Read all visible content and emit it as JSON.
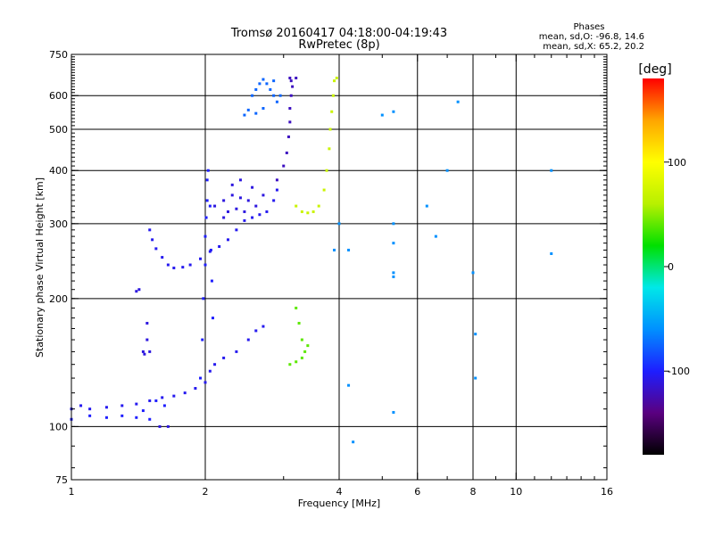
{
  "chart_data": {
    "type": "scatter",
    "title": "Tromsø 20160417 04:18:00-04:19:43",
    "subtitle": "RwPretec (8p)",
    "stats": {
      "heading": "Phases",
      "line_o": "mean, sd,O: -96.8, 14.6",
      "line_x": "mean, sd,X:  65.2, 20.2"
    },
    "xlabel": "Frequency [MHz]",
    "ylabel": "Stationary phase Virtual Height [km]",
    "x_scale": "log",
    "y_scale": "log",
    "xlim": [
      1,
      16
    ],
    "ylim": [
      75,
      750
    ],
    "x_ticks": [
      1,
      2,
      4,
      6,
      8,
      10,
      16
    ],
    "y_ticks": [
      75,
      100,
      200,
      300,
      400,
      500,
      600,
      750
    ],
    "grid": true,
    "colorbar": {
      "label": "[deg]",
      "range": [
        -180,
        180
      ],
      "ticks": [
        100,
        0,
        -100
      ],
      "colors": [
        "#000000",
        "#5a0080",
        "#1e1eff",
        "#0090ff",
        "#00e8e8",
        "#00e000",
        "#b8f000",
        "#ffff00",
        "#ffa500",
        "#ff0000"
      ]
    },
    "series": [
      {
        "trace": "o-lower-band",
        "phase": -105,
        "points": [
          [
            1.0,
            110
          ],
          [
            1.05,
            112
          ],
          [
            1.1,
            110
          ],
          [
            1.2,
            111
          ],
          [
            1.3,
            112
          ],
          [
            1.4,
            113
          ],
          [
            1.5,
            115
          ],
          [
            1.6,
            117
          ],
          [
            1.7,
            118
          ],
          [
            1.8,
            120
          ],
          [
            1.9,
            123
          ],
          [
            2.0,
            127
          ],
          [
            2.05,
            135
          ],
          [
            2.1,
            140
          ],
          [
            2.2,
            145
          ],
          [
            2.35,
            150
          ],
          [
            2.5,
            160
          ],
          [
            2.6,
            168
          ],
          [
            2.7,
            172
          ]
        ]
      },
      {
        "trace": "o-lower-lobe",
        "phase": -100,
        "points": [
          [
            1.0,
            104
          ],
          [
            1.1,
            106
          ],
          [
            1.2,
            105
          ],
          [
            1.3,
            106
          ],
          [
            1.4,
            105
          ],
          [
            1.45,
            109
          ],
          [
            1.5,
            104
          ],
          [
            1.55,
            115
          ],
          [
            1.62,
            112
          ]
        ]
      },
      {
        "trace": "o-low-scatter",
        "phase": -110,
        "points": [
          [
            1.45,
            150
          ],
          [
            1.46,
            148
          ],
          [
            1.48,
            160
          ],
          [
            1.48,
            175
          ],
          [
            1.5,
            150
          ],
          [
            1.58,
            100
          ],
          [
            1.65,
            100
          ],
          [
            1.4,
            208
          ],
          [
            1.42,
            210
          ]
        ]
      },
      {
        "trace": "o-vertical-rise",
        "phase": -100,
        "points": [
          [
            1.95,
            130
          ],
          [
            1.97,
            160
          ],
          [
            1.98,
            200
          ],
          [
            2.0,
            240
          ],
          [
            2.0,
            280
          ],
          [
            2.01,
            310
          ],
          [
            2.02,
            340
          ],
          [
            2.02,
            380
          ],
          [
            2.03,
            400
          ],
          [
            2.05,
            330
          ],
          [
            2.06,
            260
          ],
          [
            2.07,
            220
          ],
          [
            2.08,
            180
          ]
        ]
      },
      {
        "trace": "o-f-layer-cusp",
        "phase": -105,
        "points": [
          [
            1.5,
            290
          ],
          [
            1.52,
            275
          ],
          [
            1.55,
            262
          ],
          [
            1.6,
            250
          ],
          [
            1.65,
            240
          ],
          [
            1.7,
            236
          ],
          [
            1.78,
            237
          ],
          [
            1.85,
            240
          ],
          [
            1.95,
            248
          ],
          [
            2.05,
            258
          ],
          [
            2.15,
            265
          ],
          [
            2.25,
            275
          ],
          [
            2.35,
            290
          ],
          [
            2.45,
            305
          ],
          [
            2.55,
            310
          ],
          [
            2.65,
            315
          ],
          [
            2.75,
            320
          ],
          [
            2.85,
            340
          ],
          [
            2.9,
            360
          ]
        ]
      },
      {
        "trace": "o-f-scatter",
        "phase": -110,
        "points": [
          [
            2.1,
            330
          ],
          [
            2.2,
            340
          ],
          [
            2.3,
            350
          ],
          [
            2.4,
            345
          ],
          [
            2.5,
            340
          ],
          [
            2.6,
            330
          ],
          [
            2.3,
            370
          ],
          [
            2.4,
            380
          ],
          [
            2.2,
            310
          ],
          [
            2.25,
            320
          ],
          [
            2.55,
            365
          ],
          [
            2.7,
            350
          ],
          [
            2.45,
            320
          ],
          [
            2.35,
            325
          ]
        ]
      },
      {
        "trace": "o-cusp-to-top",
        "phase": -120,
        "points": [
          [
            2.9,
            380
          ],
          [
            3.0,
            410
          ],
          [
            3.05,
            440
          ],
          [
            3.08,
            480
          ],
          [
            3.1,
            520
          ],
          [
            3.1,
            560
          ],
          [
            3.12,
            600
          ],
          [
            3.14,
            630
          ],
          [
            3.12,
            650
          ],
          [
            3.1,
            660
          ],
          [
            3.2,
            660
          ]
        ]
      },
      {
        "trace": "o-top-cluster",
        "phase": -75,
        "points": [
          [
            2.55,
            600
          ],
          [
            2.6,
            620
          ],
          [
            2.65,
            640
          ],
          [
            2.7,
            655
          ],
          [
            2.75,
            640
          ],
          [
            2.8,
            620
          ],
          [
            2.85,
            600
          ],
          [
            2.9,
            580
          ],
          [
            2.95,
            600
          ],
          [
            2.5,
            555
          ],
          [
            2.45,
            540
          ],
          [
            2.6,
            545
          ],
          [
            2.7,
            560
          ],
          [
            2.85,
            650
          ]
        ]
      },
      {
        "trace": "x-f-layer",
        "phase": 70,
        "points": [
          [
            3.2,
            330
          ],
          [
            3.3,
            320
          ],
          [
            3.4,
            318
          ],
          [
            3.5,
            320
          ],
          [
            3.6,
            330
          ],
          [
            3.7,
            360
          ],
          [
            3.75,
            400
          ],
          [
            3.8,
            450
          ],
          [
            3.82,
            500
          ],
          [
            3.85,
            550
          ],
          [
            3.88,
            600
          ],
          [
            3.9,
            650
          ],
          [
            3.95,
            660
          ]
        ]
      },
      {
        "trace": "x-lower",
        "phase": 40,
        "points": [
          [
            3.1,
            140
          ],
          [
            3.2,
            142
          ],
          [
            3.3,
            145
          ],
          [
            3.35,
            150
          ],
          [
            3.3,
            160
          ],
          [
            3.25,
            175
          ],
          [
            3.2,
            190
          ],
          [
            3.4,
            155
          ]
        ]
      },
      {
        "trace": "scattered-points",
        "phase": -60,
        "points": [
          [
            3.9,
            260
          ],
          [
            4.0,
            300
          ],
          [
            4.2,
            260
          ],
          [
            4.2,
            125
          ],
          [
            4.3,
            92
          ],
          [
            5.0,
            540
          ],
          [
            5.3,
            550
          ],
          [
            5.3,
            300
          ],
          [
            5.3,
            270
          ],
          [
            5.3,
            230
          ],
          [
            5.3,
            225
          ],
          [
            5.3,
            108
          ],
          [
            6.3,
            330
          ],
          [
            6.6,
            280
          ],
          [
            7.0,
            400
          ],
          [
            7.4,
            580
          ],
          [
            8.0,
            230
          ],
          [
            8.1,
            165
          ],
          [
            8.1,
            130
          ],
          [
            12.0,
            400
          ],
          [
            12.0,
            255
          ]
        ]
      }
    ]
  }
}
